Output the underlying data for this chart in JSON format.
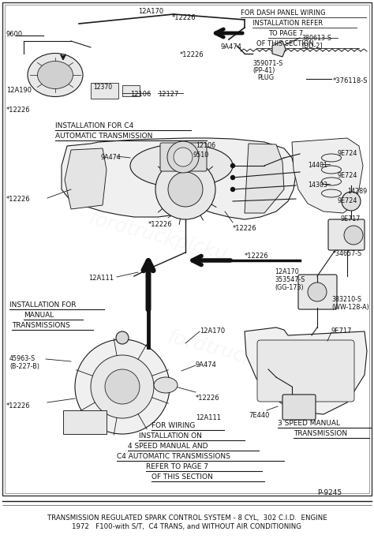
{
  "fig_width": 4.74,
  "fig_height": 6.97,
  "dpi": 100,
  "bg_color": "#ffffff",
  "line_color": "#1a1a1a",
  "caption_line1": "TRANSMISSION REGULATED SPARK CONTROL SYSTEM - 8 CYL,  302 C.I.D.  ENGINE",
  "caption_line2": "1972   F100-with S/T,  C4 TRANS, and WITHOUT AIR CONDITIONING",
  "page_ref": "P-9245"
}
